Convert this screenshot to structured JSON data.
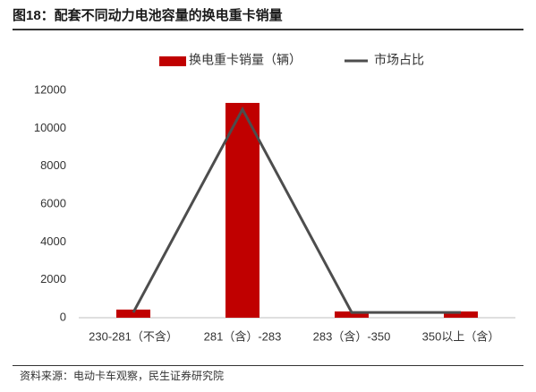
{
  "title": "图18：配套不同动力电池容量的换电重卡销量",
  "source": "资料来源：电动卡车观察，民生证券研究院",
  "chart_data": {
    "type": "bar",
    "categories": [
      "230-281（不含）",
      "281（含）-283",
      "283（含）-350",
      "350以上（含）"
    ],
    "series": [
      {
        "name": "换电重卡销量（辆）",
        "type": "bar",
        "color": "#c00000",
        "values": [
          430,
          11340,
          330,
          330
        ]
      },
      {
        "name": "市场占比",
        "type": "line",
        "color": "#4d4d4d",
        "values": [
          280,
          11000,
          280,
          280
        ]
      }
    ],
    "ylim": [
      0,
      12000
    ],
    "yticks": [
      0,
      2000,
      4000,
      6000,
      8000,
      10000,
      12000
    ],
    "legend": "top"
  }
}
